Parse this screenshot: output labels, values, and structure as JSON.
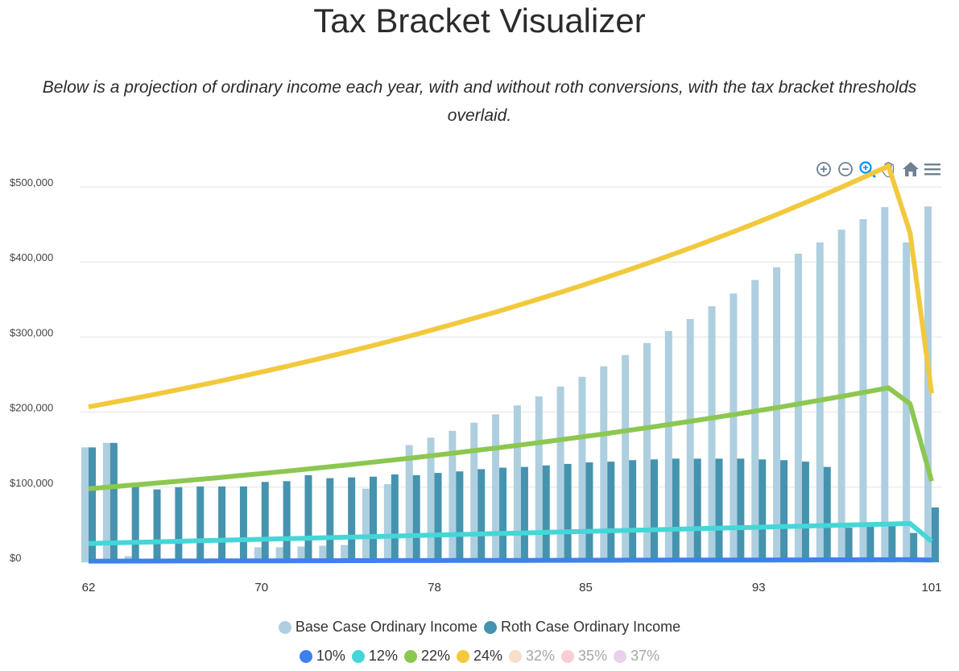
{
  "page": {
    "title": "Tax Bracket Visualizer",
    "subtitle_line1": "Below is a projection of ordinary income each year, with and without roth conversions, with the tax bracket thresholds",
    "subtitle_line2": "overlaid."
  },
  "toolbar": {
    "tools": [
      "zoom-in-icon",
      "zoom-out-icon",
      "selection-zoom-icon",
      "pan-icon",
      "reset-home-icon",
      "menu-icon"
    ],
    "active_tool": "selection-zoom-icon",
    "icon_color": "#6e8192",
    "active_color": "#008ffb"
  },
  "chart_data": {
    "type": "bar",
    "x": [
      62,
      63,
      64,
      65,
      66,
      67,
      68,
      69,
      70,
      71,
      72,
      73,
      74,
      75,
      76,
      77,
      78,
      79,
      80,
      81,
      82,
      83,
      84,
      85,
      86,
      87,
      88,
      89,
      90,
      91,
      92,
      93,
      94,
      95,
      96,
      97,
      98,
      99,
      100,
      101
    ],
    "x_tick_labels": [
      "62",
      "70",
      "78",
      "85",
      "93",
      "101"
    ],
    "y_tick_labels": [
      "$0",
      "$100,000",
      "$200,000",
      "$300,000",
      "$400,000",
      "$500,000"
    ],
    "ylim": [
      0,
      500000
    ],
    "grid": true,
    "legend_position": "bottom",
    "series": [
      {
        "name": "Base Case Ordinary Income",
        "kind": "bar",
        "color": "#aecfdf",
        "values": [
          153000,
          159000,
          8000,
          0,
          0,
          0,
          0,
          0,
          20000,
          20000,
          21000,
          22000,
          23000,
          98000,
          104000,
          156000,
          166000,
          175000,
          186000,
          197000,
          209000,
          221000,
          234000,
          247000,
          261000,
          276000,
          292000,
          308000,
          324000,
          341000,
          358000,
          376000,
          393000,
          411000,
          426000,
          443000,
          457000,
          473000,
          426000,
          474000
        ]
      },
      {
        "name": "Roth Case Ordinary Income",
        "kind": "bar",
        "color": "#4593ae",
        "values": [
          153000,
          159000,
          104000,
          97000,
          100000,
          101000,
          101000,
          101000,
          107000,
          108000,
          116000,
          112000,
          113000,
          114000,
          117000,
          116000,
          119000,
          121000,
          124000,
          126000,
          127000,
          129000,
          131000,
          133000,
          134000,
          136000,
          137000,
          138000,
          138000,
          138000,
          138000,
          137000,
          136000,
          134000,
          127000,
          46000,
          48000,
          50000,
          39000,
          73000
        ]
      }
    ],
    "brackets": [
      {
        "name": "10%",
        "color": "#3d82ec",
        "visible": true,
        "values": [
          1500,
          1550,
          1600,
          1650,
          1700,
          1750,
          1800,
          1850,
          1900,
          1950,
          2000,
          2050,
          2100,
          2150,
          2200,
          2250,
          2300,
          2350,
          2400,
          2450,
          2500,
          2550,
          2600,
          2650,
          2700,
          2750,
          2800,
          2850,
          2900,
          2950,
          3000,
          3050,
          3100,
          3150,
          3200,
          3250,
          3300,
          3350,
          3400,
          3000
        ]
      },
      {
        "name": "12%",
        "color": "#45d6d8",
        "visible": true,
        "values": [
          25000,
          25700,
          26400,
          27100,
          27800,
          28500,
          29200,
          29900,
          30600,
          31300,
          32000,
          32700,
          33400,
          34100,
          34800,
          35500,
          36200,
          36900,
          37600,
          38300,
          39000,
          39700,
          40400,
          41100,
          41800,
          42500,
          43200,
          43900,
          44600,
          45300,
          46000,
          46700,
          47400,
          48100,
          48800,
          49500,
          50200,
          50900,
          51600,
          28000
        ]
      },
      {
        "name": "22%",
        "color": "#8cc751",
        "visible": true,
        "values": [
          98000,
          100300,
          102700,
          105100,
          107600,
          110100,
          112700,
          115400,
          118100,
          120900,
          123800,
          126700,
          129700,
          132800,
          135900,
          139100,
          142400,
          145800,
          149200,
          152700,
          156300,
          160000,
          163800,
          167700,
          171600,
          175700,
          179800,
          184100,
          188400,
          192900,
          197400,
          202000,
          206800,
          211700,
          216700,
          221800,
          227000,
          232400,
          211000,
          108000
        ]
      },
      {
        "name": "24%",
        "color": "#f2c93d",
        "visible": true,
        "values": [
          207000,
          212300,
          217700,
          223300,
          229000,
          234900,
          240900,
          247100,
          253400,
          259900,
          266600,
          273400,
          280400,
          287600,
          295000,
          302500,
          310300,
          318200,
          326400,
          334700,
          343300,
          352100,
          361100,
          370400,
          379900,
          389600,
          399600,
          409800,
          420300,
          431100,
          442100,
          453400,
          465000,
          477000,
          489200,
          501700,
          514600,
          527800,
          439000,
          225000
        ]
      },
      {
        "name": "32%",
        "color": "#f4c4a1",
        "visible": false
      },
      {
        "name": "35%",
        "color": "#f2a6ae",
        "visible": false
      },
      {
        "name": "37%",
        "color": "#d8a9df",
        "visible": false
      }
    ]
  }
}
